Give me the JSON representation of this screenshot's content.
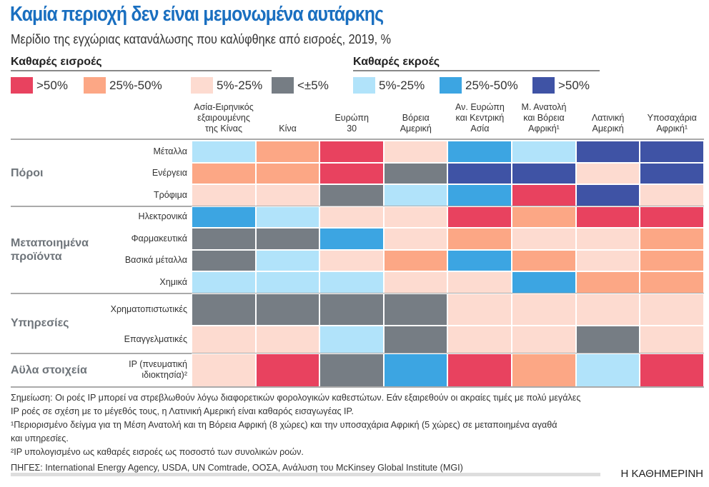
{
  "title": "Καμία περιοχή δεν είναι μεμονωμένα αυτάρκης",
  "subtitle": "Μερίδιο της εγχώριας κατανάλωσης που καλύφθηκε από εισροές, 2019, %",
  "chart_data": {
    "type": "heatmap",
    "legend": {
      "inflows_title": "Καθαρές εισροές",
      "outflows_title": "Καθαρές εκροές",
      "categories": [
        {
          "label": ">50%",
          "color": "#e8425f",
          "group": "inflows"
        },
        {
          "label": "25%-50%",
          "color": "#fca785",
          "group": "inflows"
        },
        {
          "label": "5%-25%",
          "color": "#fddbd0",
          "group": "inflows"
        },
        {
          "label": "<±5%",
          "color": "#767d84",
          "group": "neutral"
        },
        {
          "label": "5%-25%",
          "color": "#b1e3fa",
          "group": "outflows"
        },
        {
          "label": "25%-50%",
          "color": "#3ca5e2",
          "group": "outflows"
        },
        {
          "label": ">50%",
          "color": "#3f53a5",
          "group": "outflows"
        }
      ]
    },
    "columns": [
      "Ασία-Ειρηνικός\nεξαιρουμένης\nτης Κίνας",
      "Κίνα",
      "Ευρώπη\n30",
      "Βόρεια\nΑμερική",
      "Αν. Ευρώπη\nκαι Κεντρική\nΑσία",
      "Μ. Ανατολή\nκαι Βόρεια\nΑφρική¹",
      "Λατινική\nΑμερική",
      "Υποσαχάρια\nΑφρική¹"
    ],
    "groups": [
      {
        "label": "Πόροι",
        "rows": [
          {
            "label": "Μέταλλα",
            "values": [
              4,
              1,
              0,
              2,
              5,
              4,
              6,
              6
            ]
          },
          {
            "label": "Ενέργεια",
            "values": [
              1,
              1,
              0,
              3,
              6,
              6,
              2,
              6
            ]
          },
          {
            "label": "Τρόφιμα",
            "values": [
              2,
              2,
              3,
              4,
              5,
              0,
              6,
              2
            ]
          }
        ]
      },
      {
        "label": "Μεταποιημένα\nπροϊόντα",
        "rows": [
          {
            "label": "Ηλεκτρονικά",
            "values": [
              5,
              4,
              2,
              2,
              0,
              1,
              0,
              0
            ]
          },
          {
            "label": "Φαρμακευτικά",
            "values": [
              3,
              3,
              5,
              2,
              1,
              2,
              2,
              1
            ]
          },
          {
            "label": "Βασικά μέταλλα",
            "values": [
              3,
              4,
              2,
              1,
              5,
              1,
              2,
              1
            ]
          },
          {
            "label": "Χημικά",
            "values": [
              4,
              4,
              4,
              2,
              2,
              5,
              1,
              1
            ]
          }
        ]
      },
      {
        "label": "Υπηρεσίες",
        "rows": [
          {
            "label": "Χρηματοπιστωτικές",
            "values": [
              3,
              3,
              3,
              3,
              2,
              2,
              2,
              2
            ]
          },
          {
            "label": "Επαγγελματικές",
            "values": [
              2,
              2,
              4,
              3,
              2,
              2,
              3,
              2
            ]
          }
        ]
      },
      {
        "label": "Αϋλα στοιχεία",
        "rows": [
          {
            "label": "IP (πνευματική\nιδιοκτησία)²",
            "values": [
              2,
              0,
              3,
              5,
              0,
              1,
              4,
              0
            ]
          }
        ]
      }
    ]
  },
  "notes": [
    "Σημείωση: Οι ροές IP μπορεί να στρεβλωθούν λόγω διαφορετικών φορολογικών καθεστώτων. Εάν εξαιρεθούν οι ακραίες τιμές με πολύ μεγάλες",
    "IP ροές σε σχέση με το μέγεθός τους, η Λατινική Αμερική είναι καθαρός εισαγωγέας IP.",
    "¹Περιορισμένο δείγμα για τη Μέση Ανατολή και τη Βόρεια Αφρική (8 χώρες) και την υποσαχάρια Αφρική (5 χώρες) σε μεταποιημένα αγαθά",
    "και υπηρεσίες.",
    "²IP υπολογισμένο ως καθαρές εισροές ως ποσοστό των συνολικών ροών."
  ],
  "sources": "ΠΗΓΕΣ: International Energy Agency, USDA, UN Comtrade, ΟΟΣΑ, Ανάλυση του McKinsey Global Institute (MGI)",
  "brand": "Η ΚΑΘΗΜΕΡΙΝΗ"
}
